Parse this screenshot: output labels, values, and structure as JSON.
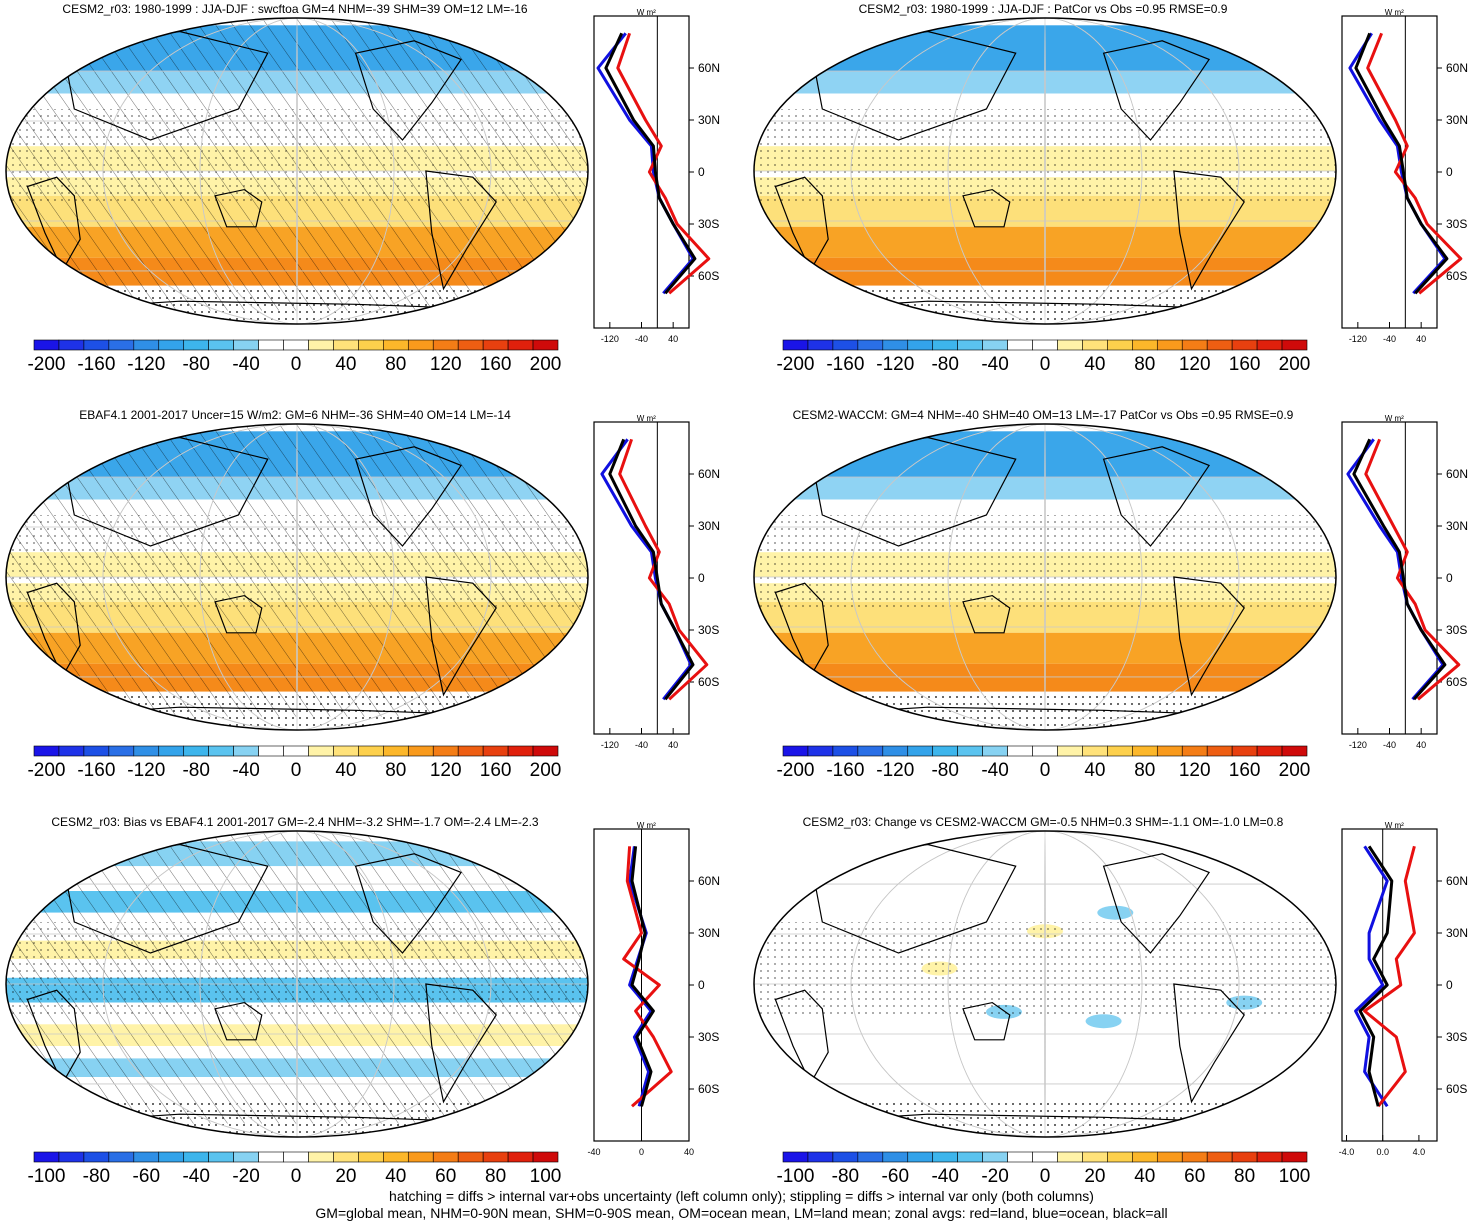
{
  "panels": [
    {
      "title": "CESM2_r03: 1980-1999 : JJA-DJF : swcftoa GM=4 NHM=-39 SHM=39 OM=12 LM=-16"
    },
    {
      "title": "CESM2_r03: 1980-1999 : JJA-DJF : PatCor vs Obs =0.95 RMSE=0.9"
    },
    {
      "title": "EBAF4.1 2001-2017 Uncer=15 W/m2: GM=6 NHM=-36 SHM=40 OM=14 LM=-14"
    },
    {
      "title": "CESM2-WACCM: GM=4 NHM=-40 SHM=40 OM=13 LM=-17 PatCor vs Obs =0.95 RMSE=0.9"
    },
    {
      "title": "CESM2_r03: Bias vs EBAF4.1 2001-2017 GM=-2.4 NHM=-3.2 SHM=-1.7 OM=-2.4 LM=-2.3"
    },
    {
      "title": "CESM2_r03: Change vs CESM2-WACCM GM=-0.5 NHM=0.3 SHM=-1.1 OM=-1.0 LM=0.8"
    }
  ],
  "zonal_unit": "W m²",
  "lat_ticks": [
    "60N",
    "30N",
    "0",
    "30S",
    "60S"
  ],
  "colorbars": {
    "full": {
      "labels": [
        "-200",
        "-160",
        "-120",
        "-80",
        "-40",
        "0",
        "40",
        "80",
        "120",
        "160",
        "200"
      ],
      "colors": [
        "#1a14e8",
        "#1e32e8",
        "#1d50e6",
        "#2a6fe6",
        "#2f8fe6",
        "#33a3ea",
        "#3db5ec",
        "#5ac3ef",
        "#87d2f2",
        "#ffffff",
        "#ffffff",
        "#fff3a8",
        "#ffe27a",
        "#fdd04c",
        "#fcb72a",
        "#f99a1c",
        "#f47d16",
        "#ee5e12",
        "#e8400f",
        "#e0200c",
        "#cf0a0a"
      ]
    },
    "bias": {
      "labels": [
        "-100",
        "-80",
        "-60",
        "-40",
        "-20",
        "0",
        "20",
        "40",
        "60",
        "80",
        "100"
      ],
      "colors": [
        "#1a14e8",
        "#1e32e8",
        "#1d50e6",
        "#2a6fe6",
        "#2f8fe6",
        "#33a3ea",
        "#3db5ec",
        "#5ac3ef",
        "#87d2f2",
        "#ffffff",
        "#ffffff",
        "#fff3a8",
        "#ffe27a",
        "#fdd04c",
        "#fcb72a",
        "#f99a1c",
        "#f47d16",
        "#ee5e12",
        "#e8400f",
        "#e0200c",
        "#cf0a0a"
      ]
    }
  },
  "zonal_xticks": {
    "full": [
      "-120",
      "-40",
      "40"
    ],
    "bias": [
      "-40",
      "0",
      "40"
    ],
    "change": [
      "-4.0",
      "0.0",
      "4.0"
    ]
  },
  "footer": {
    "line1": "hatching = diffs > internal var+obs uncertainty (left column only); stippling = diffs > internal var only (both columns)",
    "line2": "GM=global mean, NHM=0-90N mean, SHM=0-90S mean, OM=ocean mean, LM=land mean; zonal avgs: red=land, blue=ocean, black=all"
  },
  "colors": {
    "ocean_line": "#1010e0",
    "land_line": "#e81010",
    "all_line": "#000000"
  },
  "chart_data": [
    {
      "type": "heatmap",
      "title": "CESM2_r03: 1980-1999 : JJA-DJF : swcftoa GM=4 NHM=-39 SHM=39 OM=12 LM=-16",
      "colorbar_range": [
        -200,
        200
      ],
      "colorbar_step": 20,
      "zonal_means": {
        "lat": [
          80,
          60,
          30,
          15,
          0,
          -15,
          -30,
          -50,
          -70
        ],
        "all": [
          -90,
          -130,
          -60,
          -10,
          -5,
          5,
          40,
          95,
          20
        ],
        "ocean": [
          -80,
          -150,
          -70,
          -15,
          -10,
          5,
          40,
          90,
          15
        ],
        "land": [
          -70,
          -100,
          -30,
          10,
          -20,
          20,
          50,
          130,
          30
        ]
      }
    },
    {
      "type": "heatmap",
      "title": "CESM2_r03: 1980-1999 : JJA-DJF : PatCor vs Obs =0.95 RMSE=0.9",
      "colorbar_range": [
        -200,
        200
      ],
      "colorbar_step": 20,
      "zonal_means": {
        "lat": [
          80,
          60,
          30,
          15,
          0,
          -15,
          -30,
          -50,
          -70
        ],
        "all": [
          -90,
          -125,
          -55,
          -15,
          -5,
          5,
          40,
          105,
          25
        ],
        "ocean": [
          -85,
          -140,
          -65,
          -20,
          -10,
          5,
          40,
          100,
          20
        ],
        "land": [
          -60,
          -95,
          -25,
          5,
          -25,
          25,
          55,
          140,
          35
        ]
      }
    },
    {
      "type": "heatmap",
      "title": "EBAF4.1 2001-2017 Uncer=15 W/m2: GM=6 NHM=-36 SHM=40 OM=14 LM=-14",
      "colorbar_range": [
        -200,
        200
      ],
      "colorbar_step": 20,
      "zonal_means": {
        "lat": [
          80,
          60,
          30,
          15,
          0,
          -15,
          -30,
          -50,
          -70
        ],
        "all": [
          -85,
          -120,
          -55,
          -10,
          0,
          10,
          45,
          90,
          20
        ],
        "ocean": [
          -75,
          -140,
          -65,
          -15,
          -5,
          10,
          45,
          85,
          15
        ],
        "land": [
          -65,
          -95,
          -30,
          5,
          -20,
          30,
          55,
          125,
          30
        ]
      }
    },
    {
      "type": "heatmap",
      "title": "CESM2-WACCM: GM=4 NHM=-40 SHM=40 OM=13 LM=-17 PatCor vs Obs =0.95 RMSE=0.9",
      "colorbar_range": [
        -200,
        200
      ],
      "colorbar_step": 20,
      "zonal_means": {
        "lat": [
          80,
          60,
          30,
          15,
          0,
          -15,
          -30,
          -50,
          -70
        ],
        "all": [
          -90,
          -130,
          -55,
          -15,
          -5,
          5,
          40,
          100,
          22
        ],
        "ocean": [
          -80,
          -145,
          -65,
          -20,
          -10,
          5,
          40,
          95,
          18
        ],
        "land": [
          -65,
          -100,
          -30,
          5,
          -20,
          25,
          50,
          135,
          32
        ]
      }
    },
    {
      "type": "heatmap",
      "title": "CESM2_r03: Bias vs EBAF4.1 2001-2017 GM=-2.4 NHM=-3.2 SHM=-1.7 OM=-2.4 LM=-2.3",
      "colorbar_range": [
        -100,
        100
      ],
      "colorbar_step": 10,
      "zonal_means": {
        "lat": [
          80,
          60,
          30,
          15,
          0,
          -15,
          -30,
          -50,
          -70
        ],
        "all": [
          -5,
          -8,
          3,
          -2,
          -8,
          10,
          -4,
          8,
          0
        ],
        "ocean": [
          -6,
          -10,
          4,
          -3,
          -10,
          8,
          -6,
          6,
          -2
        ],
        "land": [
          -10,
          -12,
          0,
          -15,
          15,
          -5,
          10,
          25,
          -8
        ]
      }
    },
    {
      "type": "heatmap",
      "title": "CESM2_r03: Change vs CESM2-WACCM GM=-0.5 NHM=0.3 SHM=-1.1 OM=-1.0 LM=0.8",
      "colorbar_range": [
        -100,
        100
      ],
      "colorbar_step": 10,
      "zonal_means": {
        "lat": [
          80,
          60,
          30,
          15,
          0,
          -15,
          -30,
          -50,
          -70
        ],
        "all": [
          -1.5,
          1.0,
          0.5,
          -1.0,
          0.5,
          -2.5,
          -1.0,
          -1.5,
          -0.5
        ],
        "ocean": [
          -2.0,
          0.5,
          -1.5,
          -1.5,
          0.0,
          -3.0,
          -1.5,
          -2.0,
          0.5
        ],
        "land": [
          3.5,
          2.5,
          3.5,
          1.5,
          2.0,
          -2.0,
          1.5,
          2.5,
          -0.5
        ]
      }
    }
  ]
}
